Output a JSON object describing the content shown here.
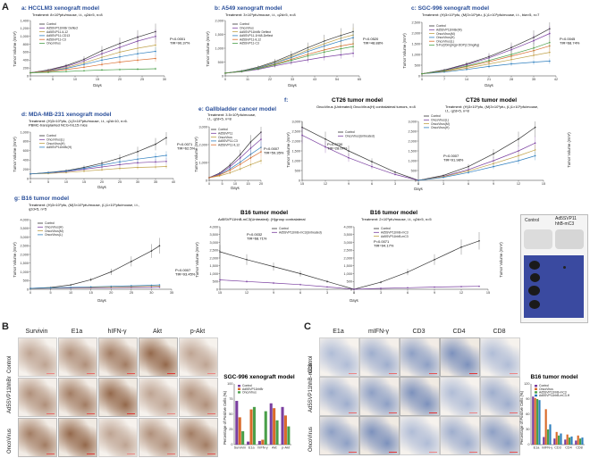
{
  "colors": {
    "control": "#333333",
    "s1": "#7a3fa0",
    "s2": "#c0a24a",
    "s3": "#2f7fbf",
    "s4": "#d96b2b",
    "s5": "#4a9f4a",
    "s6": "#1fa79a",
    "tissue_brown": "#8a5a3a",
    "tissue_blue": "#6f86b6"
  },
  "figure": {
    "panel_A_label": "A",
    "panel_B_label": "B",
    "panel_C_label": "C",
    "a": {
      "letter": "a",
      "title": "HCCLM3 xenograft model",
      "treatment": "Treatment: 8×10⁸pfu/mouse, i.t., q2d×5, n=8",
      "ylabel": "Tumor Volume (mm³)",
      "xlabel": "Days",
      "stat": "P<0.0001\nTIR=90.37%",
      "legend": [
        "Control",
        "Ad5SVP11hhBr Deflect",
        "Ad5SVP11-IL12",
        "Ad5SVP11-CD13",
        "Ad5SVP11-C3",
        "OncoVirus"
      ]
    },
    "b": {
      "letter": "b",
      "title": "A549 xenograft model",
      "treatment": "Treatment: 3×10⁹pfu/mouse, i.t., q2d×5, n=8",
      "ylabel": "Tumor Volume (mm³)",
      "xlabel": "Days",
      "stat": "P=0.0520\nTIR=48.88%",
      "legend": [
        "Control",
        "OncoVirus",
        "Ad5SVP11hhBr Deflect",
        "Ad5SVP11-1H48-Deflect",
        "Ad5SVP11-IL12",
        "Ad5SVP11-C3"
      ]
    },
    "c": {
      "letter": "c",
      "title": "SGC-996 xenograft model",
      "treatment": "Treatment: (H)3×10⁹pfu, (M)3×10⁹pfu, (L)1×10⁹pfu/mouse, i.t., biw×5, n=7",
      "ylabel": "Tumor Volume (mm³)",
      "xlabel": "Days",
      "stat": "P=0.0045\nTIR=68.74%",
      "legend": [
        "Control",
        "Ad5SVP11hhBr(M)",
        "OncoVirus(M)",
        "OncoVirus(H)",
        "OncoVirus(L)",
        "5-FU(20mg/kg)+DDP(2.5mg/kg)"
      ]
    },
    "d": {
      "letter": "d",
      "title": "MDA-MB-231 xenograft model",
      "treatment": "Treatment: (H)3×10⁹pfu, (L)3×10⁹pfu/mouse, i.t., q2d×10, n=6.\nPBMC-transplanted NCG-hIL15 mice",
      "ylabel": "Tumor Volume (mm³)",
      "xlabel": "Days",
      "stat": "P=0.0071\nTIR=62.5%",
      "legend": [
        "Control",
        "OncoVirus(L)",
        "OncoVirus(H)",
        "Ad5SVP11hhBr(H)"
      ]
    },
    "e": {
      "letter": "e",
      "title": "Gallbladder cancer model",
      "treatment": "Treatment: 3.5×10⁹pfu/mouse,\ni.t., q2d×5, n=8",
      "ylabel": "Tumor Volume (mm³)",
      "xlabel": "Days",
      "stat": "P=0.0007\nTIR=59.35%",
      "legend": [
        "Control",
        "Ad5SVP11",
        "OncoVirus",
        "Ad5SVP11-C3",
        "Ad5SVP11-IL12"
      ]
    },
    "f": {
      "letter": "f",
      "title_left": "CT26 tumor model",
      "title_right": "CT26 tumor model",
      "treatment_left": "OncoVirus (Untreated) OncoVirus(H) contralateral tumors, n=8",
      "treatment_right": "Treatment: (H)3×10⁹pfu, (M)3×10⁹pfu, (L)1×10⁹pfu/mouse,\ni.t., q2d×5, n=8",
      "ylabel_left": "Tumor Volume (mm³)",
      "ylabel_right": "Tumor Volume (mm³)",
      "xlabel": "Days",
      "stat_left": "P=0.0730\nTIR=28.07%",
      "stat_right": "P=0.0007\nTIR=91.98%",
      "legend_left": [
        "Control",
        "OncoVirus(Untreated)"
      ],
      "legend_right": [
        "Control",
        "OncoVirus(L)",
        "OncoVirus(M)",
        "OncoVirus(H)"
      ]
    },
    "g": {
      "letter": "g",
      "title_left": "B16 tumor model",
      "title_mid": "B16 tumor model",
      "title_right": "B16 tumor model",
      "treatment_left": "Treatment: (H)3×10⁹pfu, (M)3×10⁹pfu/mouse, (L)1×10⁹pfu/mouse, i.t.,\nq2d×5, n=5",
      "treatment_mid": "Ad5SVP11hhB-mC3(Untreated): (H)group contralateral",
      "treatment_right": "Treatment: 2×10⁹pfu/mouse, i.t., q2d×5, n=5",
      "ylabel": "Tumor Volume (mm³)",
      "xlabel": "Days",
      "stat_left": "P=0.0007\nTIR=93.45%",
      "stat_mid": "P=0.0032\nTIR=68.71%",
      "stat_right": "P=0.0071\nTIR=94.17%",
      "legend_left": [
        "Control",
        "OncoVirus(H)",
        "OncoVirus(M)",
        "OncoVirus(L)"
      ],
      "legend_mid": [
        "Control",
        "Ad5SVP11hhB-mC3(Untreated)"
      ],
      "legend_right": [
        "Control",
        "Ad5SVP11hhB-mC3",
        "Ad5SVP11hhB-mC3"
      ],
      "photo_labels": [
        "Control",
        "Ad5SVP11\nhhB-mC3"
      ]
    },
    "B": {
      "columns": [
        "Survivin",
        "E1a",
        "hIFN-γ",
        "Akt",
        "p-Akt"
      ],
      "rows": [
        "Control",
        "Ad5SVP11hhBr",
        "OncoVirus"
      ],
      "chart_title": "SGC-996 xenograft model",
      "chart_ylabel": "Percentage of Positive Cells (%)",
      "chart_legend": [
        "Control",
        "Ad5SVP11hhBr",
        "OncoVirus"
      ]
    },
    "C": {
      "columns": [
        "E1a",
        "mIFN-γ",
        "CD3",
        "CD4",
        "CD8"
      ],
      "rows": [
        "Control",
        "Ad5SVP11hhB-mC3",
        "OncoVirus"
      ],
      "chart_title": "B16 tumor model",
      "chart_ylabel": "Percentage of Positive Cells (%)",
      "chart_legend": [
        "Control",
        "OncoVirus",
        "Ad5SVP11hhB-mC3",
        "Ad5SVP11hhB-mC3-H"
      ]
    }
  },
  "chart_data": [
    {
      "type": "line",
      "title": "HCCLM3 xenograft model",
      "xlabel": "Days",
      "ylabel": "Tumor Volume (mm³)",
      "xlim": [
        0,
        30
      ],
      "ylim": [
        0,
        1400
      ],
      "x": [
        0,
        4,
        8,
        12,
        16,
        20,
        24,
        28
      ],
      "series": [
        {
          "name": "Control",
          "values": [
            80,
            150,
            260,
            420,
            640,
            820,
            980,
            1120
          ]
        },
        {
          "name": "Ad5SVP11hhBr Deflect",
          "values": [
            80,
            140,
            240,
            380,
            560,
            720,
            880,
            1000
          ]
        },
        {
          "name": "Ad5SVP11-IL12",
          "values": [
            80,
            130,
            210,
            330,
            470,
            600,
            700,
            780
          ]
        },
        {
          "name": "Ad5SVP11-CD13",
          "values": [
            80,
            120,
            190,
            290,
            400,
            480,
            560,
            620
          ]
        },
        {
          "name": "Ad5SVP11-C3",
          "values": [
            80,
            110,
            160,
            220,
            290,
            350,
            400,
            440
          ]
        },
        {
          "name": "OncoVirus",
          "values": [
            80,
            90,
            110,
            130,
            150,
            160,
            170,
            180
          ]
        }
      ]
    },
    {
      "type": "line",
      "title": "A549 xenograft model",
      "xlabel": "Days",
      "ylabel": "Tumor Volume (mm³)",
      "xlim": [
        0,
        65
      ],
      "ylim": [
        0,
        2000
      ],
      "x": [
        0,
        8,
        16,
        24,
        32,
        40,
        48,
        56,
        62
      ],
      "series": [
        {
          "name": "Control",
          "values": [
            100,
            180,
            320,
            520,
            760,
            1020,
            1260,
            1460,
            1600
          ]
        },
        {
          "name": "OncoVirus",
          "values": [
            100,
            150,
            240,
            360,
            480,
            580,
            680,
            760,
            820
          ]
        },
        {
          "name": "Ad5SVP11hhBr Deflect",
          "values": [
            100,
            170,
            300,
            480,
            700,
            940,
            1160,
            1360,
            1480
          ]
        },
        {
          "name": "Ad5SVP11-1H48-Deflect",
          "values": [
            100,
            170,
            290,
            460,
            660,
            880,
            1080,
            1260,
            1380
          ]
        },
        {
          "name": "Ad5SVP11-IL12",
          "values": [
            100,
            160,
            270,
            420,
            600,
            780,
            940,
            1080,
            1160
          ]
        },
        {
          "name": "Ad5SVP11-C3",
          "values": [
            100,
            160,
            260,
            400,
            560,
            720,
            860,
            980,
            1060
          ]
        }
      ]
    },
    {
      "type": "line",
      "title": "SGC-996 xenograft model",
      "xlabel": "Days",
      "ylabel": "Tumor Volume (mm³)",
      "xlim": [
        0,
        42
      ],
      "ylim": [
        0,
        2500
      ],
      "x": [
        0,
        7,
        14,
        21,
        28,
        35,
        40
      ],
      "series": [
        {
          "name": "Control",
          "values": [
            100,
            280,
            560,
            900,
            1320,
            1800,
            2200
          ]
        },
        {
          "name": "Ad5SVP11hhBr(M)",
          "values": [
            100,
            260,
            520,
            840,
            1220,
            1640,
            1980
          ]
        },
        {
          "name": "OncoVirus(M)",
          "values": [
            100,
            200,
            360,
            560,
            760,
            960,
            1100
          ]
        },
        {
          "name": "OncoVirus(H)",
          "values": [
            100,
            180,
            300,
            440,
            560,
            640,
            690
          ]
        },
        {
          "name": "OncoVirus(L)",
          "values": [
            100,
            230,
            430,
            660,
            920,
            1180,
            1400
          ]
        },
        {
          "name": "5-FU(20mg/kg)+DDP(2.5mg/kg)",
          "values": [
            100,
            240,
            460,
            720,
            1000,
            1300,
            1560
          ]
        }
      ]
    },
    {
      "type": "line",
      "title": "MDA-MB-231 xenograft model",
      "xlabel": "Days",
      "ylabel": "Tumor Volume (mm³)",
      "xlim": [
        0,
        40
      ],
      "ylim": [
        0,
        1000
      ],
      "x": [
        0,
        5,
        10,
        15,
        20,
        25,
        30,
        35,
        38
      ],
      "series": [
        {
          "name": "Control",
          "values": [
            100,
            130,
            170,
            240,
            330,
            440,
            580,
            740,
            880
          ]
        },
        {
          "name": "OncoVirus(L)",
          "values": [
            100,
            120,
            150,
            200,
            250,
            300,
            340,
            360,
            370
          ]
        },
        {
          "name": "OncoVirus(H)",
          "values": [
            100,
            110,
            130,
            160,
            190,
            220,
            240,
            250,
            260
          ]
        },
        {
          "name": "Ad5SVP11hhBr(H)",
          "values": [
            100,
            125,
            160,
            220,
            290,
            360,
            420,
            470,
            500
          ]
        }
      ]
    },
    {
      "type": "line",
      "title": "Gallbladder cancer model",
      "xlabel": "Days",
      "ylabel": "Tumor Volume (mm³)",
      "xlim": [
        0,
        20
      ],
      "ylim": [
        0,
        3000
      ],
      "x": [
        0,
        4,
        8,
        12,
        16,
        20
      ],
      "series": [
        {
          "name": "Control",
          "values": [
            150,
            400,
            850,
            1450,
            2150,
            2700
          ]
        },
        {
          "name": "Ad5SVP11",
          "values": [
            150,
            370,
            760,
            1260,
            1800,
            2300
          ]
        },
        {
          "name": "OncoVirus",
          "values": [
            150,
            250,
            420,
            640,
            880,
            1100
          ]
        },
        {
          "name": "Ad5SVP11-C3",
          "values": [
            150,
            330,
            640,
            1020,
            1460,
            1850
          ]
        },
        {
          "name": "Ad5SVP11-IL12",
          "values": [
            150,
            300,
            560,
            900,
            1260,
            1600
          ]
        }
      ]
    },
    {
      "type": "line",
      "title": "CT26 tumor model",
      "xlabel": "Days",
      "ylabel": "Tumor Volume (mm³)",
      "xlim": [
        -15,
        0
      ],
      "ylim": [
        0,
        3000
      ],
      "x": [
        -15,
        -12,
        -9,
        -6,
        -3,
        0
      ],
      "series": [
        {
          "name": "Control",
          "values": [
            2700,
            2100,
            1500,
            950,
            420,
            0
          ]
        },
        {
          "name": "OncoVirus(Untreated)",
          "values": [
            2300,
            1700,
            1150,
            700,
            300,
            0
          ]
        }
      ]
    },
    {
      "type": "line",
      "title": "CT26 tumor model",
      "xlabel": "Days",
      "ylabel": "Tumor Volume (mm³)",
      "xlim": [
        0,
        15
      ],
      "ylim": [
        0,
        3000
      ],
      "x": [
        0,
        3,
        6,
        9,
        12,
        14
      ],
      "series": [
        {
          "name": "Control",
          "values": [
            0,
            250,
            700,
            1350,
            2100,
            2700
          ]
        },
        {
          "name": "OncoVirus(L)",
          "values": [
            0,
            200,
            550,
            1000,
            1500,
            1900
          ]
        },
        {
          "name": "OncoVirus(M)",
          "values": [
            0,
            180,
            480,
            850,
            1250,
            1550
          ]
        },
        {
          "name": "OncoVirus(H)",
          "values": [
            0,
            150,
            400,
            700,
            1000,
            1250
          ]
        }
      ]
    },
    {
      "type": "line",
      "title": "B16 tumor model",
      "xlabel": "Days",
      "ylabel": "Tumor Volume (mm³)",
      "xlim": [
        0,
        35
      ],
      "ylim": [
        0,
        4000
      ],
      "x": [
        0,
        5,
        10,
        15,
        20,
        25,
        30,
        32
      ],
      "series": [
        {
          "name": "Control",
          "values": [
            50,
            100,
            250,
            550,
            1000,
            1600,
            2200,
            2500
          ]
        },
        {
          "name": "OncoVirus(H)",
          "values": [
            50,
            60,
            70,
            80,
            90,
            100,
            110,
            120
          ]
        },
        {
          "name": "OncoVirus(M)",
          "values": [
            50,
            70,
            90,
            110,
            130,
            150,
            170,
            180
          ]
        },
        {
          "name": "OncoVirus(L)",
          "values": [
            50,
            80,
            110,
            140,
            170,
            200,
            230,
            250
          ]
        }
      ]
    },
    {
      "type": "line",
      "title": "B16 tumor model",
      "xlabel": "Days",
      "ylabel": "Tumor Volume (mm³)",
      "xlim": [
        -15,
        0
      ],
      "ylim": [
        0,
        4000
      ],
      "x": [
        -15,
        -12,
        -9,
        -6,
        -3,
        0
      ],
      "series": [
        {
          "name": "Control",
          "values": [
            2400,
            1900,
            1450,
            1000,
            500,
            0
          ]
        },
        {
          "name": "Ad5SVP11hhB-mC3(Untreated)",
          "values": [
            600,
            500,
            400,
            300,
            150,
            0
          ]
        }
      ]
    },
    {
      "type": "line",
      "title": "B16 tumor model",
      "xlabel": "Days",
      "ylabel": "Tumor Volume (mm³)",
      "xlim": [
        0,
        15
      ],
      "ylim": [
        0,
        4000
      ],
      "x": [
        0,
        3,
        6,
        9,
        12,
        14
      ],
      "series": [
        {
          "name": "Control",
          "values": [
            0,
            450,
            1100,
            1900,
            2700,
            3100
          ]
        },
        {
          "name": "Ad5SVP11hhB-mC3",
          "values": [
            0,
            60,
            100,
            140,
            170,
            190
          ]
        }
      ]
    },
    {
      "type": "bar",
      "title": "SGC-996 xenograft model",
      "ylabel": "Percentage of Positive Cells (%)",
      "categories": [
        "Survivin",
        "E1a",
        "hIFN-γ",
        "Akt",
        "p-Akt"
      ],
      "ylim": [
        0,
        100
      ],
      "series": [
        {
          "name": "Control",
          "values": [
            72,
            5,
            6,
            68,
            62
          ]
        },
        {
          "name": "Ad5SVP11hhBr",
          "values": [
            45,
            58,
            8,
            60,
            48
          ]
        },
        {
          "name": "OncoVirus",
          "values": [
            22,
            62,
            55,
            40,
            30
          ]
        }
      ]
    },
    {
      "type": "bar",
      "title": "B16 tumor model",
      "ylabel": "Percentage of Positive Cells (%)",
      "categories": [
        "E1a",
        "mIFN-γ",
        "CD3",
        "CD4",
        "CD8"
      ],
      "ylim": [
        0,
        120
      ],
      "series": [
        {
          "name": "Control",
          "values": [
            95,
            15,
            12,
            10,
            8
          ]
        },
        {
          "name": "OncoVirus",
          "values": [
            92,
            70,
            25,
            20,
            18
          ]
        },
        {
          "name": "Ad5SVP11hhB-mC3",
          "values": [
            90,
            30,
            18,
            14,
            12
          ]
        },
        {
          "name": "Ad5SVP11hhB-mC3-H",
          "values": [
            88,
            40,
            22,
            16,
            14
          ]
        }
      ]
    }
  ]
}
